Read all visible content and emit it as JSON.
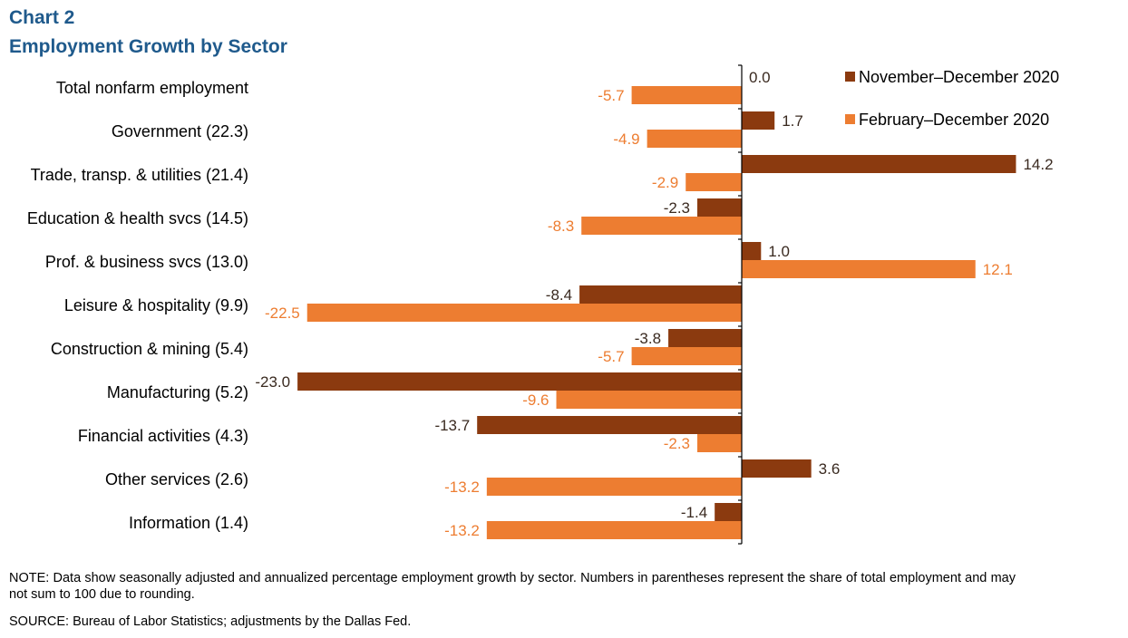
{
  "title": "Chart 2",
  "subtitle": "Employment  Growth by Sector",
  "note": "NOTE:  Data show seasonally adjusted and annualized percentage employment growth by sector. Numbers in parentheses represent the share of total employment and may not sum to 100 due to rounding.",
  "source": "SOURCE:  Bureau of Labor Statistics; adjustments by the Dallas Fed.",
  "colors": {
    "title": "#1f5a8c",
    "nov_dec": "#8b3a0f",
    "feb_dec": "#ed7d31"
  },
  "chart_data": {
    "type": "bar",
    "orientation": "horizontal",
    "legend_position": "top-right",
    "grid": false,
    "xlim": [
      -25,
      17
    ],
    "categories": [
      "Total nonfarm employment",
      "Government (22.3)",
      "Trade, transp. & utilities (21.4)",
      "Education & health svcs (14.5)",
      "Prof. & business svcs (13.0)",
      "Leisure & hospitality (9.9)",
      "Construction & mining (5.4)",
      "Manufacturing (5.2)",
      "Financial activities (4.3)",
      "Other services (2.6)",
      "Information (1.4)"
    ],
    "series": [
      {
        "name": "November–December  2020",
        "color": "#8b3a0f",
        "values": [
          0.0,
          1.7,
          14.2,
          -2.3,
          1.0,
          -8.4,
          -3.8,
          -23.0,
          -13.7,
          3.6,
          -1.4
        ],
        "labels": [
          "0.0",
          "1.7",
          "14.2",
          "-2.3",
          "1.0",
          "-8.4",
          "-3.8",
          "-23.0",
          "-13.7",
          "3.6",
          "-1.4"
        ]
      },
      {
        "name": "February–December 2020",
        "color": "#ed7d31",
        "values": [
          -5.7,
          -4.9,
          -2.9,
          -8.3,
          12.1,
          -22.5,
          -5.7,
          -9.6,
          -2.3,
          -13.2,
          -13.2
        ],
        "labels": [
          "-5.7",
          "-4.9",
          "-2.9",
          "-8.3",
          "12.1",
          "-22.5",
          "-5.7",
          "-9.6",
          "-2.3",
          "-13.2",
          "-13.2"
        ]
      }
    ]
  }
}
